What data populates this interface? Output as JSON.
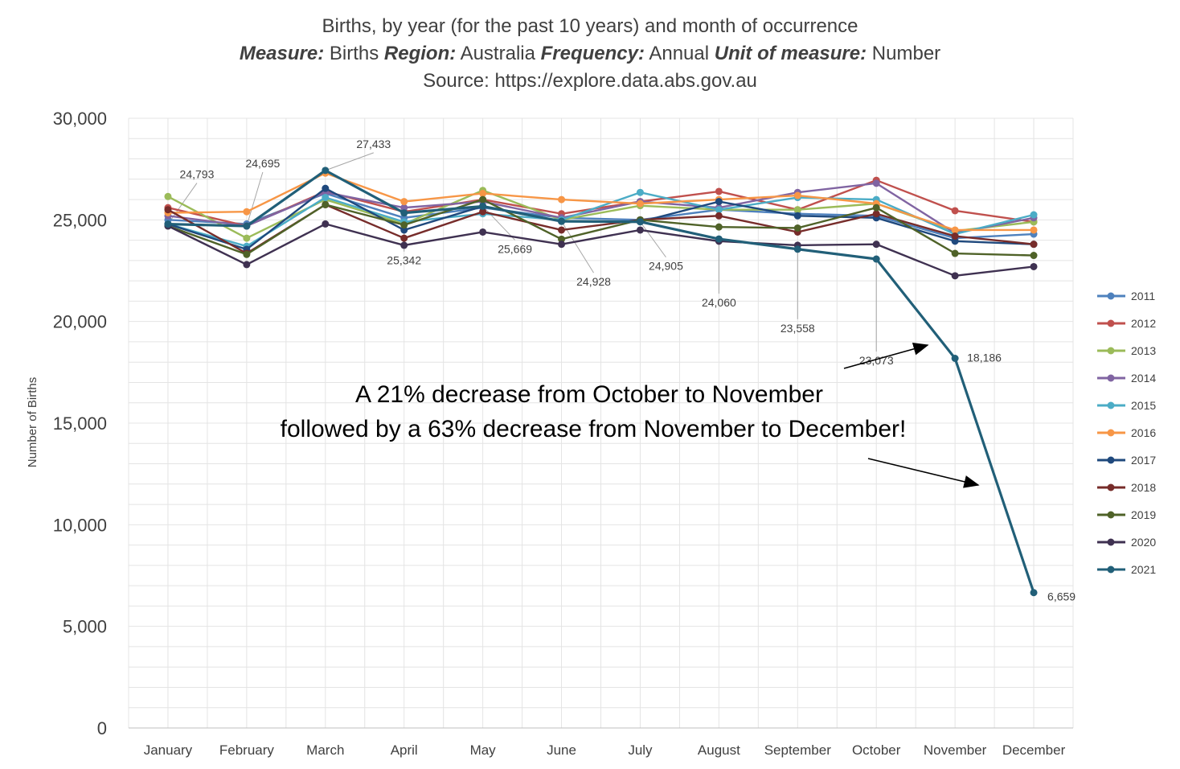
{
  "chart_data": {
    "type": "line",
    "title": "Births, by year (for the past 10 years) and month of occurrence",
    "subtitle": {
      "measure_label": "Measure:",
      "measure_value": "Births",
      "region_label": "Region:",
      "region_value": "Australia",
      "frequency_label": "Frequency:",
      "frequency_value": "Annual",
      "unit_label": "Unit of measure:",
      "unit_value": "Number"
    },
    "source": "Source: https://explore.data.abs.gov.au",
    "xlabel": "",
    "ylabel": "Number of Births",
    "ylim": [
      0,
      30000
    ],
    "yticks": [
      0,
      5000,
      10000,
      15000,
      20000,
      25000,
      30000
    ],
    "ytick_labels": [
      "0",
      "5,000",
      "10,000",
      "15,000",
      "20,000",
      "25,000",
      "30,000"
    ],
    "grid": true,
    "legend_position": "right",
    "categories": [
      "January",
      "February",
      "March",
      "April",
      "May",
      "June",
      "July",
      "August",
      "September",
      "October",
      "November",
      "December"
    ],
    "series": [
      {
        "name": "2011",
        "color": "#4e81bd",
        "values": [
          25000,
          24800,
          26300,
          25100,
          25600,
          25100,
          25000,
          25500,
          25300,
          25200,
          24100,
          24300
        ]
      },
      {
        "name": "2012",
        "color": "#c0504d",
        "values": [
          25600,
          24700,
          26400,
          25400,
          26000,
          25300,
          25900,
          26400,
          25500,
          26950,
          25450,
          24900
        ]
      },
      {
        "name": "2013",
        "color": "#9bbb59",
        "values": [
          26150,
          24100,
          26000,
          24800,
          26450,
          25000,
          25700,
          25500,
          25500,
          25800,
          24450,
          24900
        ]
      },
      {
        "name": "2014",
        "color": "#8064a2",
        "values": [
          25200,
          24700,
          26350,
          25600,
          25900,
          25100,
          25900,
          25600,
          26350,
          26800,
          24350,
          25100
        ]
      },
      {
        "name": "2015",
        "color": "#4bacc6",
        "values": [
          24800,
          23700,
          26100,
          24900,
          25300,
          25000,
          26350,
          25500,
          26100,
          26000,
          24300,
          25250
        ]
      },
      {
        "name": "2016",
        "color": "#f79646",
        "values": [
          25350,
          25400,
          27300,
          25900,
          26300,
          26000,
          25800,
          26000,
          26200,
          25800,
          24500,
          24500
        ]
      },
      {
        "name": "2017",
        "color": "#1f497d",
        "values": [
          24793,
          23550,
          26550,
          24500,
          25669,
          24928,
          24905,
          25900,
          25200,
          25100,
          23950,
          23800
        ]
      },
      {
        "name": "2018",
        "color": "#772c2a",
        "values": [
          25500,
          23350,
          25750,
          24100,
          25400,
          24500,
          25000,
          25200,
          24400,
          25300,
          24200,
          23800
        ]
      },
      {
        "name": "2019",
        "color": "#4f6228",
        "values": [
          24700,
          23300,
          25750,
          24750,
          26000,
          24050,
          25000,
          24650,
          24600,
          25600,
          23350,
          23250
        ]
      },
      {
        "name": "2020",
        "color": "#3f3151",
        "values": [
          24700,
          22800,
          24800,
          23750,
          24400,
          23800,
          24500,
          23950,
          23750,
          23800,
          22250,
          22700
        ]
      },
      {
        "name": "2021",
        "color": "#215f78",
        "values": [
          24793,
          24695,
          27433,
          25342,
          25669,
          24928,
          24905,
          24060,
          23558,
          23073,
          18186,
          6659
        ]
      }
    ],
    "data_labels": [
      {
        "category": "January",
        "value": 24793,
        "text": "24,793"
      },
      {
        "category": "February",
        "value": 24695,
        "text": "24,695"
      },
      {
        "category": "March",
        "value": 27433,
        "text": "27,433"
      },
      {
        "category": "April",
        "value": 25342,
        "text": "25,342"
      },
      {
        "category": "May",
        "value": 25669,
        "text": "25,669"
      },
      {
        "category": "June",
        "value": 24928,
        "text": "24,928"
      },
      {
        "category": "July",
        "value": 24905,
        "text": "24,905"
      },
      {
        "category": "August",
        "value": 24060,
        "text": "24,060"
      },
      {
        "category": "September",
        "value": 23558,
        "text": "23,558"
      },
      {
        "category": "October",
        "value": 23073,
        "text": "23,073"
      },
      {
        "category": "November",
        "value": 18186,
        "text": "18,186"
      },
      {
        "category": "December",
        "value": 6659,
        "text": "6,659"
      }
    ],
    "annotation": {
      "line1": "A 21% decrease from October to November",
      "line2": "followed by a 63% decrease from November to December!"
    }
  }
}
